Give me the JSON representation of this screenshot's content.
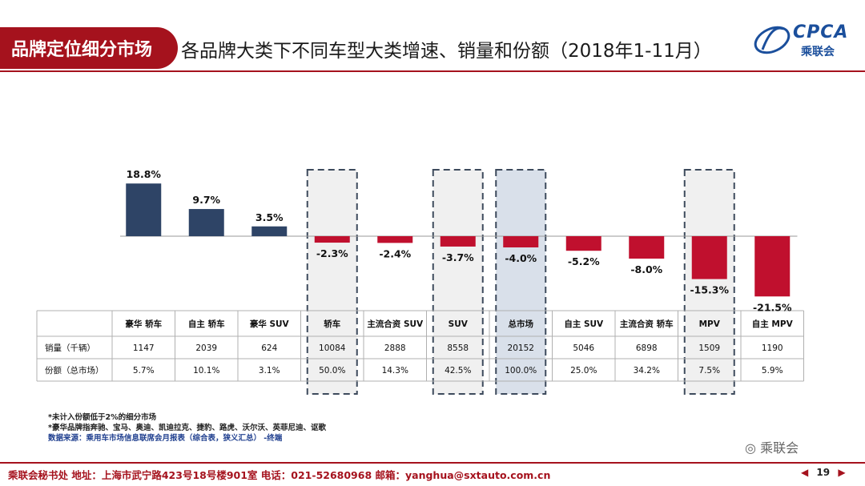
{
  "header": {
    "tab_label": "品牌定位细分市场",
    "title": "各品牌大类下不同车型大类增速、销量和份额（2018年1-11月）",
    "logo_text": "CPCA",
    "logo_sub": "乘联会"
  },
  "chart_data": {
    "type": "bar",
    "categories": [
      "豪华 轿车",
      "自主 轿车",
      "豪华 SUV",
      "轿车",
      "主流合资 SUV",
      "SUV",
      "总市场",
      "自主 SUV",
      "主流合资 轿车",
      "MPV",
      "自主 MPV"
    ],
    "series": [
      {
        "values": [
          18.8,
          9.7,
          3.5,
          -2.3,
          -2.4,
          -3.7,
          -4.0,
          -5.2,
          -8.0,
          -15.3,
          -21.5
        ]
      }
    ],
    "data_labels": [
      "18.8%",
      "9.7%",
      "3.5%",
      "-2.3%",
      "-2.4%",
      "-3.7%",
      "-4.0%",
      "-5.2%",
      "-8.0%",
      "-15.3%",
      "-21.5%"
    ],
    "ylim": [
      -22,
      20
    ],
    "colors": {
      "positive": "#2e4466",
      "negative": "#c0102e"
    },
    "highlighted": [
      "轿车",
      "SUV",
      "总市场",
      "MPV"
    ],
    "table": {
      "rows": [
        {
          "label": "销量（千辆）",
          "values": [
            "1147",
            "2039",
            "624",
            "10084",
            "2888",
            "8558",
            "20152",
            "5046",
            "6898",
            "1509",
            "1190"
          ]
        },
        {
          "label": "份额（总市场）",
          "values": [
            "5.7%",
            "10.1%",
            "3.1%",
            "50.0%",
            "14.3%",
            "42.5%",
            "100.0%",
            "25.0%",
            "34.2%",
            "7.5%",
            "5.9%"
          ]
        }
      ]
    }
  },
  "footnotes": {
    "note1": "*未计入份额低于2%的细分市场",
    "note2": "*豪华品牌指奔驰、宝马、奥迪、凯迪拉克、捷豹、路虎、沃尔沃、英菲尼迪、讴歌",
    "source": "数据来源：乘用车市场信息联席会月报表（综合表，狭义汇总）  -终端"
  },
  "watermark": "乘联会",
  "footer": {
    "text": "乘联会秘书处   地址：上海市武宁路423号18号楼901室  电话：021-52680968   邮箱：yanghua@sxtauto.com.cn"
  },
  "pager": {
    "page": "19"
  }
}
